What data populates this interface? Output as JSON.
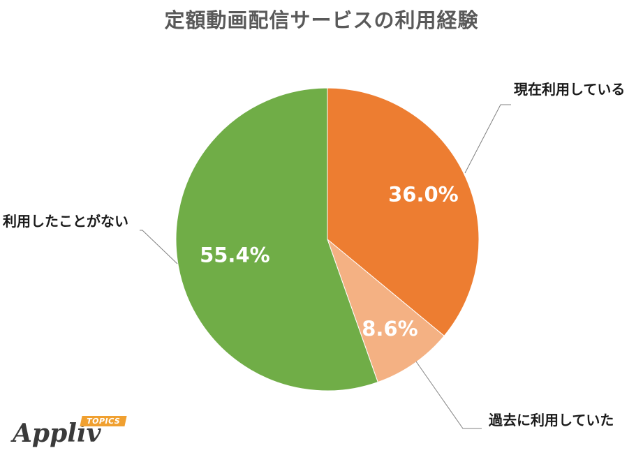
{
  "title": "定額動画配信サービスの利用経験",
  "chart_data": {
    "type": "pie",
    "title": "定額動画配信サービスの利用経験",
    "start_angle_deg": 0,
    "direction": "clockwise",
    "slices": [
      {
        "label": "現在利用している",
        "value": 36.0,
        "display": "36.0%",
        "color": "#ed7d31"
      },
      {
        "label": "過去に利用していた",
        "value": 8.6,
        "display": "8.6%",
        "color": "#f4b183"
      },
      {
        "label": "利用したことがない",
        "value": 55.4,
        "display": "55.4%",
        "color": "#70ad47"
      }
    ],
    "legend": "none",
    "labels": "outside-with-leader-lines"
  },
  "logo": {
    "wordmark": "Appliv",
    "badge": "TOPICS",
    "badge_color": "#f0a030"
  }
}
